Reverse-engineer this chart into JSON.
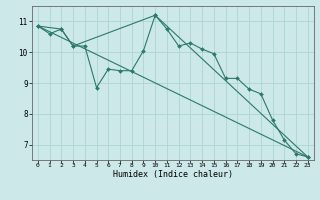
{
  "xlabel": "Humidex (Indice chaleur)",
  "background_color": "#cce8e8",
  "grid_color": "#aed4d4",
  "line_color": "#2a7a6a",
  "xlim": [
    -0.5,
    23.5
  ],
  "ylim": [
    6.5,
    11.5
  ],
  "xticks": [
    0,
    1,
    2,
    3,
    4,
    5,
    6,
    7,
    8,
    9,
    10,
    11,
    12,
    13,
    14,
    15,
    16,
    17,
    18,
    19,
    20,
    21,
    22,
    23
  ],
  "yticks": [
    7,
    8,
    9,
    10,
    11
  ],
  "line1_x": [
    0,
    1,
    2,
    3,
    4,
    5,
    6,
    7,
    8,
    9,
    10,
    11,
    12,
    13,
    14,
    15,
    16,
    17,
    18,
    19,
    20,
    21,
    22,
    23
  ],
  "line1_y": [
    10.85,
    10.6,
    10.75,
    10.2,
    10.2,
    8.85,
    9.45,
    9.4,
    9.4,
    10.05,
    11.2,
    10.75,
    10.2,
    10.3,
    10.1,
    9.95,
    9.15,
    9.15,
    8.8,
    8.65,
    7.8,
    7.15,
    6.7,
    6.6
  ],
  "line2_x": [
    0,
    23
  ],
  "line2_y": [
    10.85,
    6.6
  ],
  "line3_x": [
    0,
    2,
    3,
    10,
    23
  ],
  "line3_y": [
    10.85,
    10.75,
    10.2,
    11.2,
    6.6
  ],
  "figsize": [
    3.2,
    2.0
  ],
  "dpi": 100
}
